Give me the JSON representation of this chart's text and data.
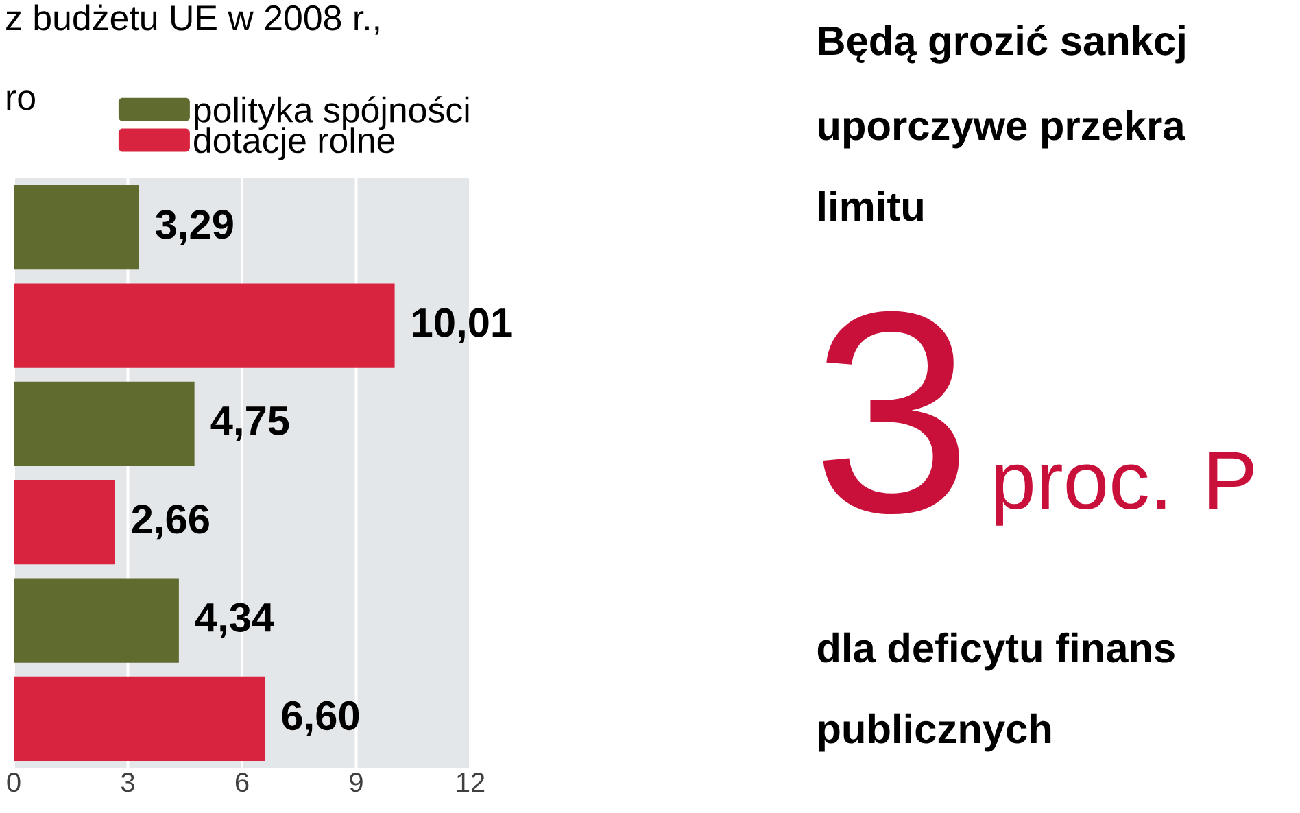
{
  "chart_data": [
    {
      "type": "bar",
      "orientation": "horizontal",
      "title": "z budżetu UE w 2008 r.,",
      "subtitle": "ro",
      "categories": [
        null,
        null,
        null,
        null,
        null,
        null
      ],
      "series": [
        {
          "name": "polityka spójności",
          "color": "#5f6b2f",
          "values": [
            3.29,
            null,
            4.75,
            null,
            4.34,
            null
          ],
          "value_labels": [
            "3,29",
            null,
            "4,75",
            null,
            "4,34",
            null
          ]
        },
        {
          "name": "dotacje rolne",
          "color": "#d9243f",
          "values": [
            null,
            10.01,
            null,
            2.66,
            null,
            6.6
          ],
          "value_labels": [
            null,
            "10,01",
            null,
            "2,66",
            null,
            "6,60"
          ]
        }
      ],
      "xlim": [
        0,
        12
      ],
      "xticks": [
        0,
        3,
        6,
        9,
        12
      ],
      "grid": "x",
      "legend": "top"
    },
    {
      "type": "other",
      "annotations": [
        "Będą grozić sankcj",
        "uporczywe przekra",
        "limitu",
        "3",
        "proc. P",
        "dla deficytu finans",
        "publicznych"
      ]
    }
  ]
}
